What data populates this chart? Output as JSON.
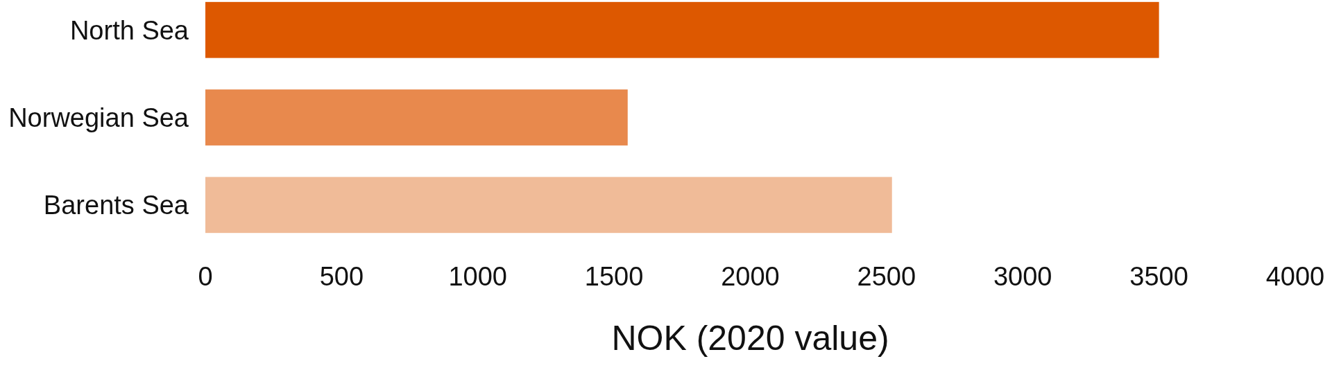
{
  "chart_data": {
    "type": "bar",
    "orientation": "horizontal",
    "xlabel": "NOK (2020 value)",
    "categories": [
      "North Sea",
      "Norwegian Sea",
      "Barents Sea"
    ],
    "values": [
      3500,
      1550,
      2520
    ],
    "colors": [
      "#dd5800",
      "#e8894d",
      "#f0bb98"
    ],
    "xlim": [
      0,
      4000
    ],
    "xticks": [
      0,
      500,
      1000,
      1500,
      2000,
      2500,
      3000,
      3500,
      4000
    ],
    "grid": false
  }
}
